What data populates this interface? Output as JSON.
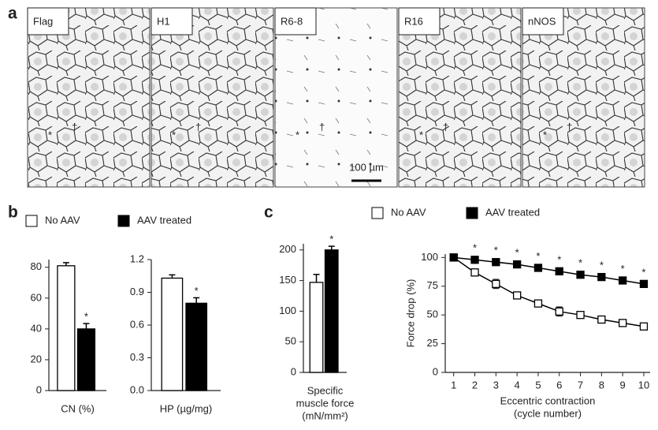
{
  "panel_labels": [
    "a",
    "b",
    "c"
  ],
  "micrographs": {
    "panels": [
      {
        "label": "Flag",
        "marks": [
          "*",
          "†"
        ]
      },
      {
        "label": "H1",
        "marks": [
          "*",
          "†"
        ]
      },
      {
        "label": "R6-8",
        "marks": [
          "*",
          "†"
        ]
      },
      {
        "label": "R16",
        "marks": [
          "*",
          "†"
        ]
      },
      {
        "label": "nNOS",
        "marks": [
          "*",
          "†"
        ]
      }
    ],
    "scale_bar": "100 µm"
  },
  "chart_data": [
    {
      "type": "bar",
      "xlabel": [
        "CN (%)"
      ],
      "ylim": [
        0,
        85
      ],
      "yticks": [
        0,
        20,
        40,
        60,
        80
      ],
      "annotation": "*",
      "series": [
        {
          "name": "No AAV",
          "color": "#ffffff",
          "values": [
            81
          ],
          "errors": [
            2
          ]
        },
        {
          "name": "AAV treated",
          "color": "#000000",
          "values": [
            40
          ],
          "errors": [
            3.5
          ]
        }
      ]
    },
    {
      "type": "bar",
      "xlabel": [
        "HP (µg/mg)"
      ],
      "ylim": [
        0,
        1.2
      ],
      "yticks": [
        {
          "value": 0,
          "label": "0.0"
        },
        0.3,
        0.6,
        0.9,
        1.2
      ],
      "annotation": "*",
      "series": [
        {
          "name": "No AAV",
          "color": "#ffffff",
          "values": [
            1.03
          ],
          "errors": [
            0.03
          ]
        },
        {
          "name": "AAV treated",
          "color": "#000000",
          "values": [
            0.8
          ],
          "errors": [
            0.05
          ]
        }
      ]
    },
    {
      "type": "bar",
      "xlabel": [
        "Specific",
        "muscle force",
        "(mN/mm²)"
      ],
      "ylim": [
        0,
        210
      ],
      "yticks": [
        0,
        50,
        100,
        150,
        200
      ],
      "annotation": "*",
      "series": [
        {
          "name": "No AAV",
          "color": "#ffffff",
          "values": [
            147
          ],
          "errors": [
            13
          ]
        },
        {
          "name": "AAV treated",
          "color": "#000000",
          "values": [
            200
          ],
          "errors": [
            6
          ]
        }
      ]
    },
    {
      "type": "line",
      "xlabel": [
        "Eccentric contraction",
        "(cycle number)"
      ],
      "ylabel": "Force drop (%)",
      "x": [
        1,
        2,
        3,
        4,
        5,
        6,
        7,
        8,
        9,
        10
      ],
      "xlim": [
        0.6,
        10.3
      ],
      "xticks": [
        1,
        2,
        3,
        4,
        5,
        6,
        7,
        8,
        9,
        10
      ],
      "ylim": [
        0,
        103
      ],
      "yticks": [
        0,
        25,
        50,
        75,
        100
      ],
      "annotations": [
        {
          "x": 2,
          "text": "*"
        },
        {
          "x": 3,
          "text": "*"
        },
        {
          "x": 4,
          "text": "*"
        },
        {
          "x": 5,
          "text": "*"
        },
        {
          "x": 6,
          "text": "*"
        },
        {
          "x": 7,
          "text": "*"
        },
        {
          "x": 8,
          "text": "*"
        },
        {
          "x": 9,
          "text": "*"
        },
        {
          "x": 10,
          "text": "*"
        }
      ],
      "series": [
        {
          "name": "No AAV",
          "color": "#ffffff",
          "values": [
            100,
            87,
            77,
            67,
            60,
            53,
            50,
            46,
            43,
            40
          ],
          "errors": [
            0,
            3,
            4,
            3,
            3,
            4,
            2,
            1,
            1,
            1
          ]
        },
        {
          "name": "AAV treated",
          "color": "#000000",
          "values": [
            100,
            98,
            96,
            94,
            91,
            88,
            85,
            83,
            80,
            77
          ],
          "errors": [
            0,
            1,
            1,
            1,
            1,
            1,
            1,
            1,
            1,
            1
          ]
        }
      ]
    }
  ]
}
